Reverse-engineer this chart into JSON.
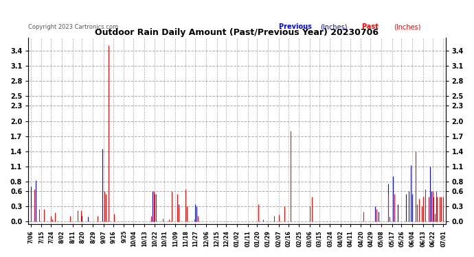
{
  "title": "Outdoor Rain Daily Amount (Past/Previous Year) 20230706",
  "copyright": "Copyright 2023 Cartronics.com",
  "legend_previous": "Previous",
  "legend_past": "Past",
  "legend_ylabel": "(Inches)",
  "color_previous": "#0000ff",
  "color_past": "#ff0000",
  "background_color": "#ffffff",
  "grid_color": "#aaaaaa",
  "yticks": [
    0.0,
    0.3,
    0.6,
    0.8,
    1.1,
    1.4,
    1.7,
    2.0,
    2.3,
    2.5,
    2.8,
    3.1,
    3.4
  ],
  "xtick_labels": [
    "7/06",
    "7/15",
    "7/24",
    "8/02",
    "8/11",
    "8/20",
    "8/29",
    "9/07",
    "9/16",
    "9/25",
    "10/04",
    "10/13",
    "10/22",
    "10/31",
    "11/09",
    "11/18",
    "11/27",
    "12/06",
    "12/15",
    "12/24",
    "01/02",
    "01/11",
    "01/20",
    "01/29",
    "02/07",
    "02/16",
    "02/25",
    "03/06",
    "03/15",
    "03/24",
    "04/02",
    "04/11",
    "04/20",
    "04/29",
    "05/08",
    "05/17",
    "05/26",
    "06/04",
    "06/13",
    "06/22",
    "07/01"
  ],
  "past_rain": [
    0.28,
    0.0,
    0.0,
    0.64,
    0.0,
    0.0,
    0.0,
    0.25,
    0.0,
    0.0,
    0.0,
    0.25,
    0.0,
    0.0,
    0.0,
    0.0,
    0.0,
    0.12,
    0.05,
    0.0,
    0.18,
    0.0,
    0.0,
    0.0,
    0.0,
    0.0,
    0.0,
    0.0,
    0.0,
    0.0,
    0.0,
    0.0,
    0.0,
    0.12,
    0.0,
    0.0,
    0.0,
    0.0,
    0.0,
    0.23,
    0.0,
    0.0,
    0.22,
    0.0,
    0.0,
    0.0,
    0.0,
    0.0,
    0.0,
    0.0,
    0.0,
    0.0,
    0.0,
    0.0,
    0.0,
    0.0,
    0.12,
    0.0,
    0.0,
    0.0,
    0.0,
    0.0,
    0.6,
    0.55,
    0.0,
    3.5,
    0.0,
    0.0,
    0.0,
    0.0,
    0.16,
    0.0,
    0.0,
    0.0,
    0.0,
    0.0,
    0.0,
    0.0,
    0.0,
    0.0,
    0.0,
    0.0,
    0.0,
    0.0,
    0.0,
    0.0,
    0.0,
    0.0,
    0.0,
    0.0,
    0.0,
    0.0,
    0.0,
    0.0,
    0.0,
    0.0,
    0.0,
    0.0,
    0.0,
    0.0,
    0.0,
    0.12,
    0.0,
    0.6,
    0.55,
    0.55,
    0.0,
    0.0,
    0.0,
    0.0,
    0.0,
    0.06,
    0.0,
    0.0,
    0.0,
    0.0,
    0.04,
    0.0,
    0.6,
    0.0,
    0.0,
    0.0,
    0.0,
    0.55,
    0.3,
    0.0,
    0.0,
    0.0,
    0.0,
    0.0,
    0.65,
    0.3,
    0.0,
    0.0,
    0.0,
    0.0,
    0.0,
    0.04,
    0.0,
    0.0,
    0.12,
    0.0,
    0.0,
    0.0,
    0.0,
    0.0,
    0.0,
    0.0,
    0.0,
    0.0,
    0.0,
    0.0,
    0.0,
    0.0,
    0.0,
    0.0,
    0.0,
    0.0,
    0.0,
    0.0,
    0.0,
    0.0,
    0.0,
    0.0,
    0.0,
    0.0,
    0.0,
    0.0,
    0.0,
    0.0,
    0.0,
    0.0,
    0.0,
    0.0,
    0.0,
    0.0,
    0.0,
    0.0,
    0.0,
    0.0,
    0.0,
    0.0,
    0.0,
    0.0,
    0.0,
    0.0,
    0.0,
    0.0,
    0.0,
    0.0,
    0.0,
    0.35,
    0.0,
    0.0,
    0.0,
    0.04,
    0.0,
    0.0,
    0.0,
    0.0,
    0.0,
    0.0,
    0.0,
    0.0,
    0.12,
    0.0,
    0.0,
    0.0,
    0.14,
    0.0,
    0.0,
    0.0,
    0.0,
    0.3,
    0.0,
    0.0,
    0.0,
    0.0,
    1.8,
    0.0,
    0.0,
    0.0,
    0.0,
    0.0,
    0.0,
    0.0,
    0.0,
    0.0,
    0.0,
    0.0,
    0.0,
    0.0,
    0.0,
    0.0,
    0.3,
    0.0,
    0.5,
    0.0,
    0.0,
    0.0,
    0.0,
    0.0,
    0.0,
    0.0,
    0.0,
    0.0,
    0.0,
    0.0,
    0.0,
    0.0,
    0.0,
    0.0,
    0.0,
    0.0,
    0.0,
    0.0,
    0.0,
    0.0,
    0.0,
    0.0,
    0.0,
    0.0,
    0.0,
    0.0,
    0.0,
    0.0,
    0.0,
    0.0,
    0.0,
    0.0,
    0.0,
    0.0,
    0.0,
    0.0,
    0.0,
    0.0,
    0.0,
    0.0,
    0.0,
    0.2,
    0.0,
    0.0,
    0.0,
    0.0,
    0.0,
    0.0,
    0.0,
    0.0,
    0.0,
    0.0,
    0.25,
    0.0,
    0.0,
    0.0,
    0.0,
    0.0,
    0.0,
    0.0,
    0.0,
    0.0,
    0.55,
    0.1,
    0.0,
    0.0,
    0.0,
    0.55,
    0.0,
    0.0,
    0.0,
    0.0,
    0.0,
    0.0,
    0.0,
    0.0,
    0.0,
    0.0,
    0.0,
    0.0,
    0.0,
    0.0,
    0.0,
    0.0,
    0.0,
    1.4,
    0.35,
    0.0,
    0.45,
    0.0,
    0.3,
    0.5,
    0.0,
    0.65,
    0.0,
    0.0,
    0.5,
    0.0,
    0.0,
    0.6,
    0.5,
    0.15,
    0.6,
    0.5,
    0.0,
    0.5,
    0.5,
    0.0,
    0.5
  ],
  "previous_rain": [
    0.7,
    0.0,
    0.0,
    0.0,
    0.82,
    0.0,
    0.0,
    0.0,
    0.0,
    0.0,
    0.0,
    0.0,
    0.0,
    0.0,
    0.0,
    0.0,
    0.0,
    0.0,
    0.0,
    0.0,
    0.0,
    0.0,
    0.0,
    0.0,
    0.0,
    0.0,
    0.0,
    0.0,
    0.0,
    0.0,
    0.0,
    0.0,
    0.0,
    0.0,
    0.0,
    0.0,
    0.0,
    0.0,
    0.0,
    0.0,
    0.0,
    0.0,
    0.0,
    0.12,
    0.0,
    0.0,
    0.0,
    0.0,
    0.1,
    0.0,
    0.0,
    0.0,
    0.0,
    0.0,
    0.0,
    0.0,
    0.0,
    0.0,
    0.0,
    0.0,
    1.45,
    0.0,
    0.0,
    0.0,
    0.0,
    0.0,
    0.0,
    0.0,
    0.0,
    0.0,
    0.0,
    0.0,
    0.0,
    0.0,
    0.0,
    0.0,
    0.0,
    0.0,
    0.0,
    0.0,
    0.0,
    0.0,
    0.0,
    0.0,
    0.0,
    0.0,
    0.0,
    0.0,
    0.0,
    0.0,
    0.0,
    0.0,
    0.0,
    0.0,
    0.0,
    0.0,
    0.0,
    0.0,
    0.0,
    0.0,
    0.0,
    0.08,
    0.6,
    0.55,
    0.0,
    0.0,
    0.0,
    0.0,
    0.0,
    0.0,
    0.0,
    0.0,
    0.0,
    0.0,
    0.0,
    0.0,
    0.0,
    0.0,
    0.0,
    0.0,
    0.0,
    0.0,
    0.0,
    0.3,
    0.35,
    0.0,
    0.0,
    0.0,
    0.0,
    0.0,
    0.0,
    0.0,
    0.0,
    0.0,
    0.0,
    0.0,
    0.0,
    0.0,
    0.35,
    0.3,
    0.0,
    0.0,
    0.0,
    0.0,
    0.0,
    0.0,
    0.0,
    0.0,
    0.0,
    0.0,
    0.0,
    0.0,
    0.0,
    0.0,
    0.0,
    0.0,
    0.0,
    0.0,
    0.0,
    0.0,
    0.0,
    0.0,
    0.0,
    0.0,
    0.0,
    0.0,
    0.0,
    0.0,
    0.0,
    0.0,
    0.0,
    0.0,
    0.0,
    0.0,
    0.0,
    0.0,
    0.0,
    0.0,
    0.0,
    0.0,
    0.0,
    0.0,
    0.0,
    0.0,
    0.0,
    0.0,
    0.0,
    0.0,
    0.0,
    0.0,
    0.0,
    0.0,
    0.0,
    0.0,
    0.0,
    0.0,
    0.0,
    0.0,
    0.0,
    0.0,
    0.0,
    0.0,
    0.0,
    0.0,
    0.0,
    0.0,
    0.0,
    0.0,
    0.0,
    0.0,
    0.0,
    0.0,
    0.0,
    0.0,
    0.0,
    0.0,
    0.0,
    0.0,
    0.0,
    0.0,
    0.0,
    0.0,
    0.0,
    0.0,
    0.0,
    0.0,
    0.0,
    0.0,
    0.0,
    0.0,
    0.0,
    0.0,
    0.0,
    0.0,
    0.0,
    0.0,
    0.0,
    0.0,
    0.0,
    0.0,
    0.0,
    0.0,
    0.0,
    0.0,
    0.0,
    0.0,
    0.0,
    0.0,
    0.0,
    0.0,
    0.0,
    0.0,
    0.0,
    0.0,
    0.0,
    0.0,
    0.0,
    0.0,
    0.0,
    0.0,
    0.0,
    0.0,
    0.0,
    0.0,
    0.0,
    0.0,
    0.0,
    0.0,
    0.0,
    0.0,
    0.0,
    0.0,
    0.0,
    0.0,
    0.0,
    0.0,
    0.0,
    0.0,
    0.0,
    0.0,
    0.0,
    0.0,
    0.0,
    0.0,
    0.0,
    0.0,
    0.0,
    0.0,
    0.0,
    0.3,
    0.0,
    0.0,
    0.2,
    0.0,
    0.0,
    0.0,
    0.0,
    0.0,
    0.0,
    0.0,
    0.75,
    0.0,
    0.0,
    0.0,
    0.9,
    0.0,
    0.0,
    0.0,
    0.35,
    0.0,
    0.0,
    0.0,
    0.0,
    0.0,
    0.0,
    0.55,
    0.0,
    0.6,
    0.0,
    1.12,
    0.55,
    0.0,
    0.0,
    0.0,
    0.0,
    0.0,
    0.0,
    0.0,
    0.0,
    0.5,
    0.0,
    0.0,
    0.0,
    0.0,
    0.0,
    1.1,
    0.6,
    0.0,
    0.0,
    0.15,
    0.0,
    0.0,
    0.0,
    0.0,
    0.0,
    0.0,
    0.0,
    1.15,
    0.0
  ]
}
